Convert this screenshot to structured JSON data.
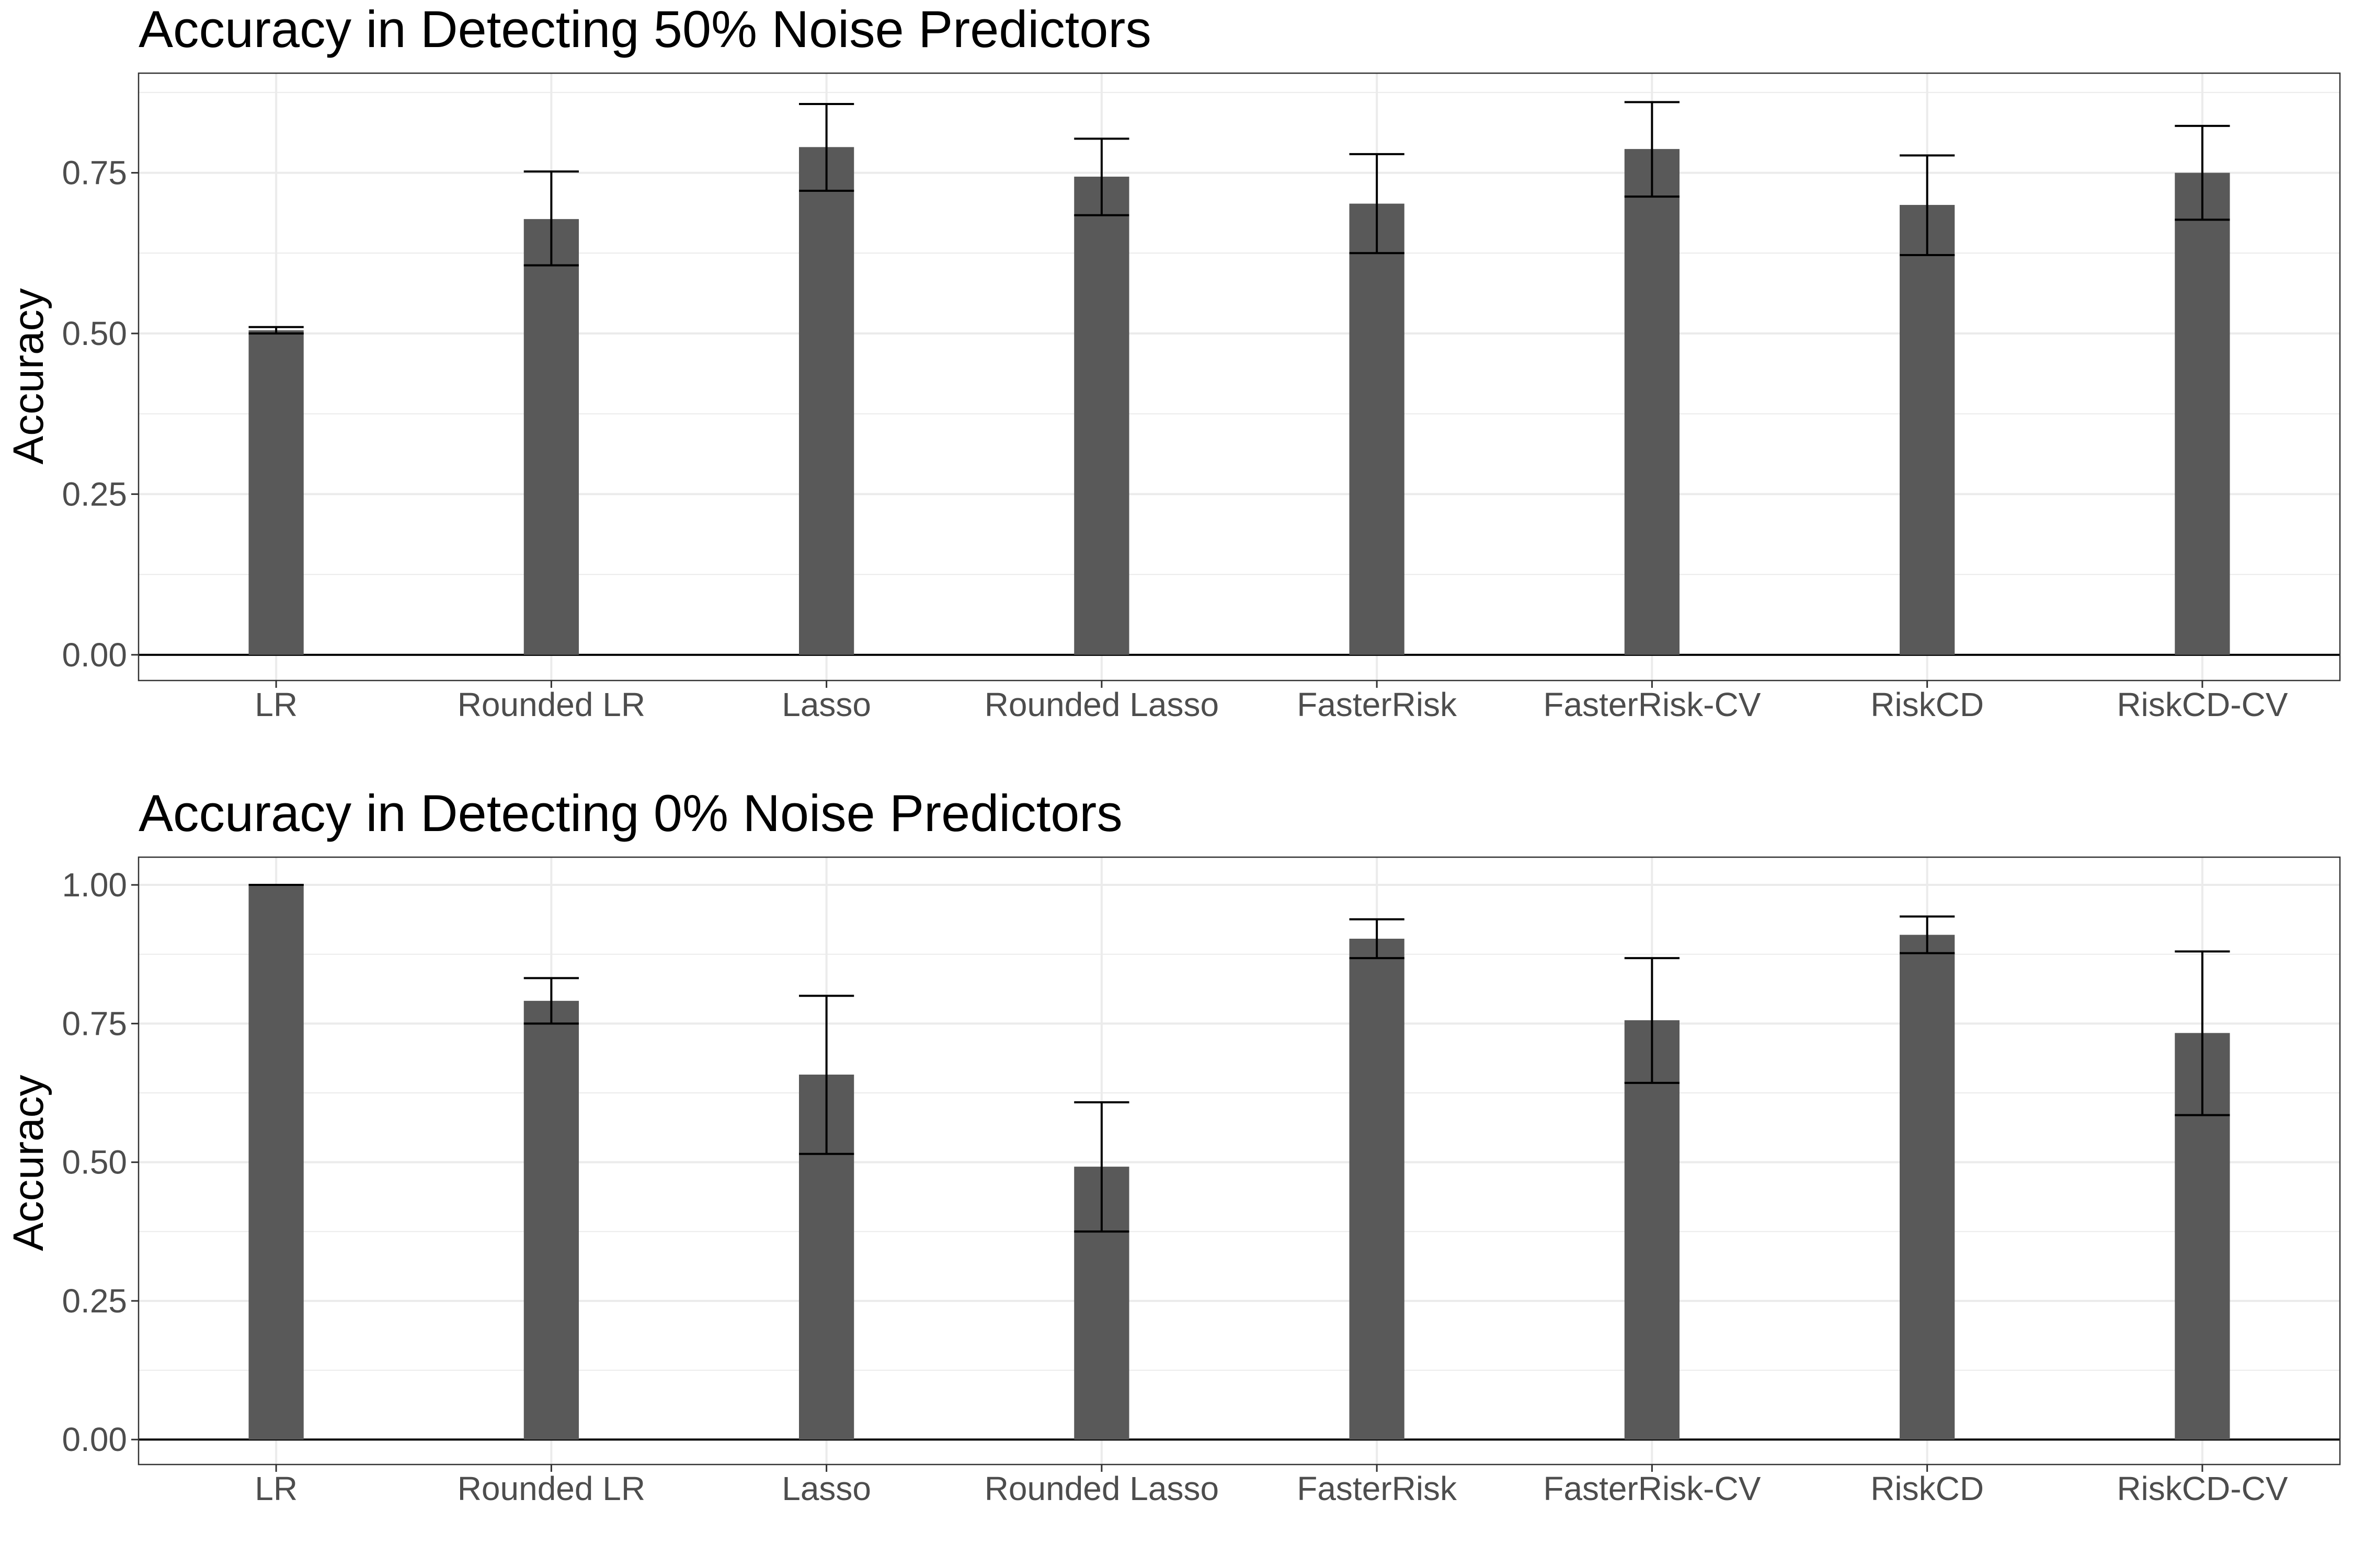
{
  "chart_data": [
    {
      "type": "bar",
      "title": "Accuracy in Detecting 50% Noise Predictors",
      "xlabel": "",
      "ylabel": "Accuracy",
      "categories": [
        "LR",
        "Rounded LR",
        "Lasso",
        "Rounded Lasso",
        "FasterRisk",
        "FasterRisk-CV",
        "RiskCD",
        "RiskCD-CV"
      ],
      "values": [
        0.505,
        0.678,
        0.79,
        0.744,
        0.702,
        0.787,
        0.7,
        0.75
      ],
      "error_low": [
        0.5,
        0.606,
        0.722,
        0.684,
        0.625,
        0.713,
        0.622,
        0.677
      ],
      "error_high": [
        0.51,
        0.752,
        0.857,
        0.803,
        0.779,
        0.86,
        0.777,
        0.823
      ],
      "yticks": [
        "0.00",
        "0.25",
        "0.50",
        "0.75"
      ],
      "ylim": [
        -0.04,
        0.905
      ],
      "grid": true,
      "bar_color": "#595959"
    },
    {
      "type": "bar",
      "title": "Accuracy in Detecting 0% Noise Predictors",
      "xlabel": "",
      "ylabel": "Accuracy",
      "categories": [
        "LR",
        "Rounded LR",
        "Lasso",
        "Rounded Lasso",
        "FasterRisk",
        "FasterRisk-CV",
        "RiskCD",
        "RiskCD-CV"
      ],
      "values": [
        1.0,
        0.791,
        0.658,
        0.492,
        0.903,
        0.756,
        0.91,
        0.733
      ],
      "error_low": [
        1.0,
        0.75,
        0.515,
        0.375,
        0.868,
        0.643,
        0.877,
        0.585
      ],
      "error_high": [
        1.0,
        0.832,
        0.8,
        0.608,
        0.938,
        0.868,
        0.943,
        0.88
      ],
      "yticks": [
        "0.00",
        "0.25",
        "0.50",
        "0.75",
        "1.00"
      ],
      "ylim": [
        -0.045,
        1.05
      ],
      "grid": true,
      "bar_color": "#595959"
    }
  ]
}
